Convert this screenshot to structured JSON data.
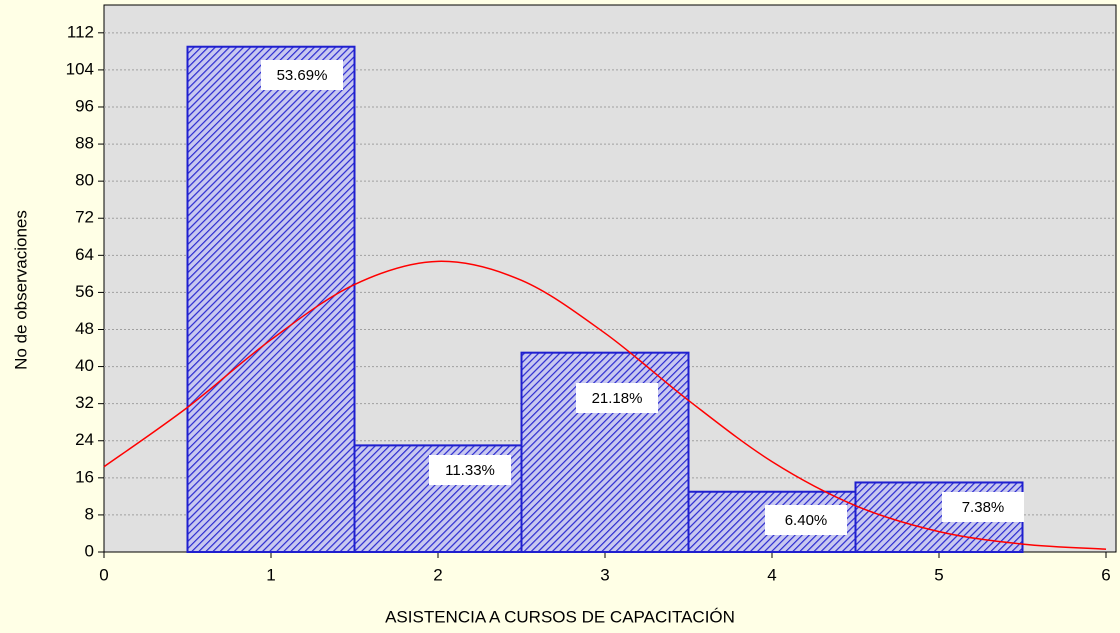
{
  "chart_data": {
    "type": "histogram",
    "xlabel": "ASISTENCIA A CURSOS DE CAPACITACIÓN",
    "ylabel": "No de observaciones",
    "bins": [
      0.5,
      1.5,
      2.5,
      3.5,
      4.5,
      5.5
    ],
    "values": [
      109,
      23,
      43,
      13,
      15
    ],
    "annotations": [
      "53.69%",
      "11.33%",
      "21.18%",
      "6.40%",
      "7.38%"
    ],
    "color": "#1f1fcf",
    "curve": {
      "color": "#ff0000",
      "x": [
        0,
        0.5,
        1,
        1.5,
        2,
        2.5,
        3,
        3.5,
        4,
        4.5,
        5,
        5.5,
        6
      ],
      "values": [
        18.4,
        31.2,
        45.8,
        57.7,
        62.7,
        58.6,
        47.2,
        32.7,
        19.5,
        10.0,
        4.4,
        1.7,
        0.6
      ]
    },
    "xlim": [
      0,
      6
    ],
    "xticks": [
      0,
      1,
      2,
      3,
      4,
      5,
      6
    ],
    "ylim": [
      0,
      118
    ],
    "yticks": [
      0,
      8,
      16,
      24,
      32,
      40,
      48,
      56,
      64,
      72,
      80,
      88,
      96,
      104,
      112
    ],
    "grid": true
  }
}
